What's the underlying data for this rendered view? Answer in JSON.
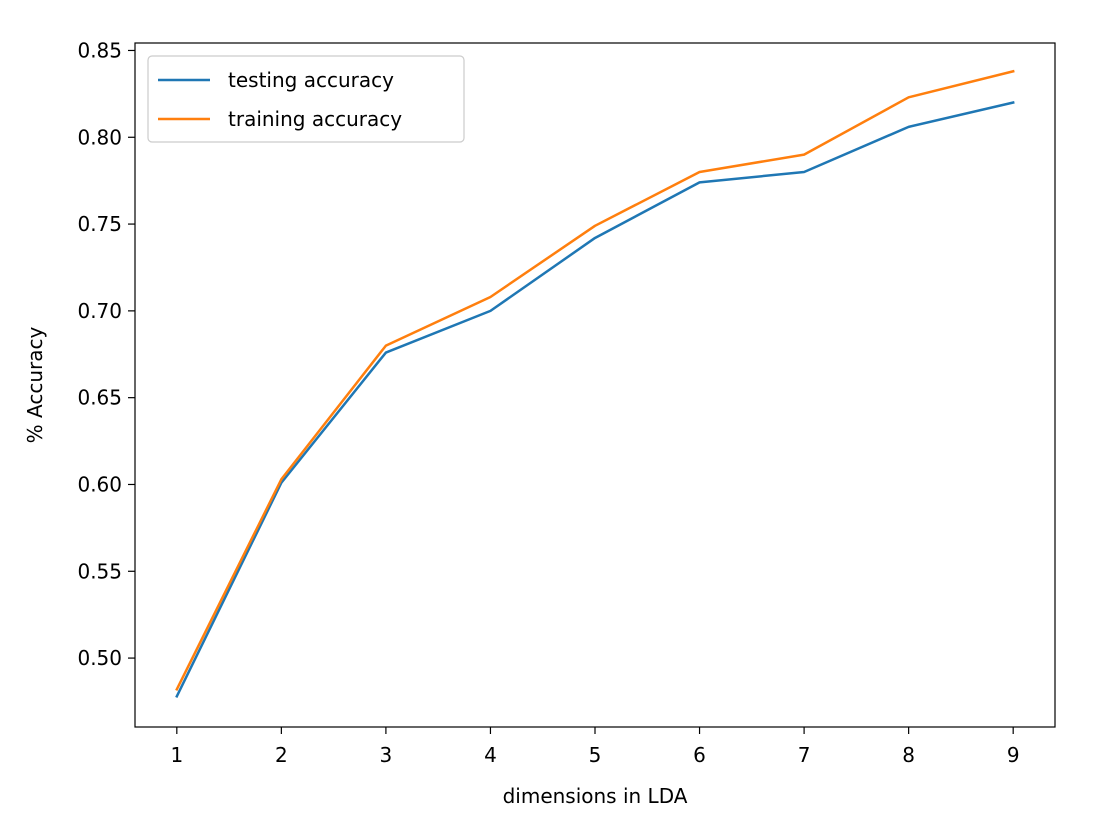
{
  "chart_data": {
    "type": "line",
    "title": "",
    "xlabel": "dimensions in LDA",
    "ylabel": "% Accuracy",
    "x": [
      1,
      2,
      3,
      4,
      5,
      6,
      7,
      8,
      9
    ],
    "xticks": [
      1,
      2,
      3,
      4,
      5,
      6,
      7,
      8,
      9
    ],
    "xlim": [
      0.6,
      9.4
    ],
    "yticks": [
      0.5,
      0.55,
      0.6,
      0.65,
      0.7,
      0.75,
      0.8,
      0.85
    ],
    "ytick_labels": [
      "0.50",
      "0.55",
      "0.60",
      "0.65",
      "0.70",
      "0.75",
      "0.80",
      "0.85"
    ],
    "ylim": [
      0.4603,
      0.8543
    ],
    "grid": false,
    "legend": "upper left",
    "series": [
      {
        "name": "testing accuracy",
        "color": "#1f77b4",
        "values": [
          0.478,
          0.601,
          0.676,
          0.7,
          0.742,
          0.774,
          0.78,
          0.806,
          0.82
        ]
      },
      {
        "name": "training accuracy",
        "color": "#ff7f0e",
        "values": [
          0.482,
          0.603,
          0.68,
          0.708,
          0.749,
          0.78,
          0.79,
          0.823,
          0.838
        ]
      }
    ]
  }
}
